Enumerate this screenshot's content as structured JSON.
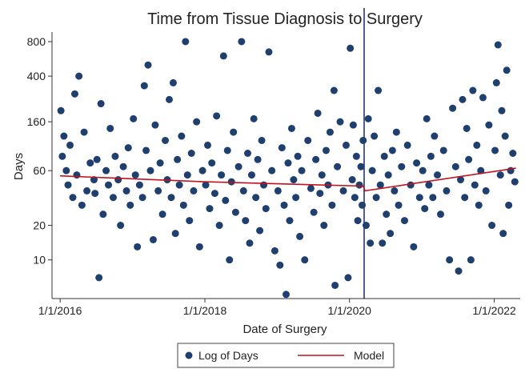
{
  "chart_data": {
    "type": "scatter",
    "title": "Time from Tissue Diagnosis to Surgery",
    "xlabel": "Date of Surgery",
    "ylabel": "Days",
    "log_y": true,
    "legend": "bottom",
    "vline": "2020-03-15",
    "vline_color": "#1a2a5e",
    "xlim": [
      "2015-11-21",
      "2022-05-12"
    ],
    "ylim": [
      4.6,
      970
    ],
    "xticks": [
      {
        "value": "2016-01-01",
        "label": "1/1/2016"
      },
      {
        "value": "2018-01-01",
        "label": "1/1/2018"
      },
      {
        "value": "2020-01-01",
        "label": "1/1/2020"
      },
      {
        "value": "2022-01-01",
        "label": "1/1/2022"
      }
    ],
    "yticks": [
      10,
      20,
      60,
      160,
      400,
      800
    ],
    "series": [
      {
        "name": "Log of Days",
        "style": "markers",
        "color": "#1f3f6e",
        "x": [
          "2016-01-05",
          "2016-01-12",
          "2016-01-20",
          "2016-02-01",
          "2016-02-10",
          "2016-02-20",
          "2016-03-05",
          "2016-03-15",
          "2016-03-25",
          "2016-04-05",
          "2016-04-20",
          "2016-05-01",
          "2016-05-15",
          "2016-06-01",
          "2016-06-20",
          "2016-06-25",
          "2016-07-05",
          "2016-07-15",
          "2016-07-25",
          "2016-08-05",
          "2016-08-20",
          "2016-09-01",
          "2016-09-10",
          "2016-09-25",
          "2016-10-05",
          "2016-10-20",
          "2016-11-01",
          "2016-11-15",
          "2016-12-01",
          "2016-12-10",
          "2016-12-20",
          "2017-01-05",
          "2017-01-15",
          "2017-01-25",
          "2017-02-05",
          "2017-02-20",
          "2017-03-01",
          "2017-03-10",
          "2017-03-20",
          "2017-04-01",
          "2017-04-15",
          "2017-04-25",
          "2017-05-10",
          "2017-05-20",
          "2017-06-01",
          "2017-06-15",
          "2017-06-25",
          "2017-07-05",
          "2017-07-15",
          "2017-07-25",
          "2017-08-05",
          "2017-08-15",
          "2017-08-25",
          "2017-09-05",
          "2017-09-15",
          "2017-09-25",
          "2017-10-05",
          "2017-10-15",
          "2017-10-25",
          "2017-11-05",
          "2017-11-20",
          "2017-12-05",
          "2017-12-20",
          "2018-01-05",
          "2018-01-15",
          "2018-01-25",
          "2018-02-05",
          "2018-02-20",
          "2018-03-01",
          "2018-03-15",
          "2018-03-25",
          "2018-04-05",
          "2018-04-15",
          "2018-04-25",
          "2018-05-05",
          "2018-05-15",
          "2018-05-25",
          "2018-06-05",
          "2018-06-20",
          "2018-07-05",
          "2018-07-15",
          "2018-07-25",
          "2018-08-05",
          "2018-08-15",
          "2018-08-25",
          "2018-09-05",
          "2018-09-15",
          "2018-09-25",
          "2018-10-05",
          "2018-10-15",
          "2018-10-25",
          "2018-11-05",
          "2018-11-20",
          "2018-12-05",
          "2018-12-20",
          "2019-01-05",
          "2019-01-15",
          "2019-01-25",
          "2019-02-05",
          "2019-02-15",
          "2019-02-25",
          "2019-03-05",
          "2019-03-15",
          "2019-03-25",
          "2019-04-05",
          "2019-04-15",
          "2019-04-25",
          "2019-05-05",
          "2019-05-20",
          "2019-06-05",
          "2019-06-20",
          "2019-07-05",
          "2019-07-15",
          "2019-07-25",
          "2019-08-05",
          "2019-08-15",
          "2019-08-25",
          "2019-09-05",
          "2019-09-15",
          "2019-09-25",
          "2019-10-05",
          "2019-10-15",
          "2019-10-20",
          "2019-11-01",
          "2019-11-15",
          "2019-12-01",
          "2019-12-15",
          "2019-12-25",
          "2020-01-05",
          "2020-01-15",
          "2020-01-20",
          "2020-01-28",
          "2020-02-05",
          "2020-02-12",
          "2020-02-20",
          "2020-02-28",
          "2020-03-05",
          "2020-03-10",
          "2020-03-25",
          "2020-04-05",
          "2020-04-15",
          "2020-04-25",
          "2020-05-05",
          "2020-05-15",
          "2020-05-25",
          "2020-06-05",
          "2020-06-15",
          "2020-06-25",
          "2020-07-05",
          "2020-07-15",
          "2020-07-25",
          "2020-08-05",
          "2020-08-15",
          "2020-08-25",
          "2020-09-05",
          "2020-09-20",
          "2020-10-05",
          "2020-10-20",
          "2020-11-05",
          "2020-11-20",
          "2020-12-05",
          "2020-12-20",
          "2021-01-05",
          "2021-01-15",
          "2021-01-25",
          "2021-02-05",
          "2021-02-15",
          "2021-02-25",
          "2021-03-05",
          "2021-03-20",
          "2021-04-05",
          "2021-04-20",
          "2021-05-05",
          "2021-05-20",
          "2021-06-05",
          "2021-06-20",
          "2021-07-05",
          "2021-07-15",
          "2021-07-25",
          "2021-08-05",
          "2021-08-15",
          "2021-08-25",
          "2021-09-05",
          "2021-09-15",
          "2021-09-25",
          "2021-10-05",
          "2021-10-15",
          "2021-10-25",
          "2021-11-05",
          "2021-11-20",
          "2021-12-05",
          "2021-12-20",
          "2022-01-05",
          "2022-01-12",
          "2022-01-20",
          "2022-02-01",
          "2022-02-08",
          "2022-02-15",
          "2022-02-25",
          "2022-03-05",
          "2022-03-15",
          "2022-03-25",
          "2022-04-05",
          "2022-04-15"
        ],
        "values": [
          200,
          80,
          120,
          60,
          45,
          100,
          35,
          280,
          55,
          400,
          30,
          130,
          40,
          70,
          50,
          38,
          75,
          7,
          230,
          25,
          60,
          45,
          140,
          35,
          80,
          50,
          20,
          65,
          40,
          95,
          30,
          170,
          55,
          13,
          45,
          35,
          330,
          90,
          500,
          60,
          15,
          150,
          40,
          70,
          25,
          110,
          50,
          250,
          35,
          350,
          17,
          75,
          45,
          120,
          30,
          800,
          55,
          22,
          85,
          40,
          160,
          13,
          60,
          45,
          100,
          28,
          70,
          38,
          180,
          20,
          55,
          600,
          33,
          90,
          10,
          48,
          130,
          26,
          65,
          800,
          40,
          22,
          85,
          14,
          55,
          170,
          35,
          75,
          18,
          110,
          45,
          28,
          650,
          60,
          12,
          40,
          9,
          95,
          30,
          5,
          70,
          22,
          140,
          50,
          35,
          80,
          16,
          60,
          10,
          110,
          42,
          26,
          75,
          190,
          38,
          55,
          20,
          90,
          45,
          130,
          30,
          300,
          6,
          65,
          160,
          40,
          100,
          7,
          700,
          50,
          150,
          35,
          80,
          22,
          45,
          65,
          30,
          110,
          20,
          170,
          14,
          60,
          120,
          35,
          300,
          45,
          14,
          80,
          25,
          55,
          17,
          90,
          40,
          130,
          30,
          65,
          22,
          100,
          45,
          13,
          70,
          35,
          60,
          28,
          170,
          45,
          80,
          35,
          120,
          55,
          25,
          90,
          40,
          10,
          210,
          65,
          8,
          50,
          250,
          35,
          140,
          75,
          10,
          300,
          45,
          100,
          30,
          60,
          260,
          40,
          150,
          20,
          90,
          350,
          750,
          55,
          200,
          17,
          120,
          450,
          30,
          60,
          85,
          48
        ]
      },
      {
        "name": "Model",
        "style": "line",
        "color": "#c0121f",
        "x": [
          "2016-01-01",
          "2018-01-01",
          "2020-03-10",
          "2020-03-20",
          "2022-04-20"
        ],
        "values": [
          54,
          48,
          44,
          40,
          63
        ]
      }
    ]
  }
}
